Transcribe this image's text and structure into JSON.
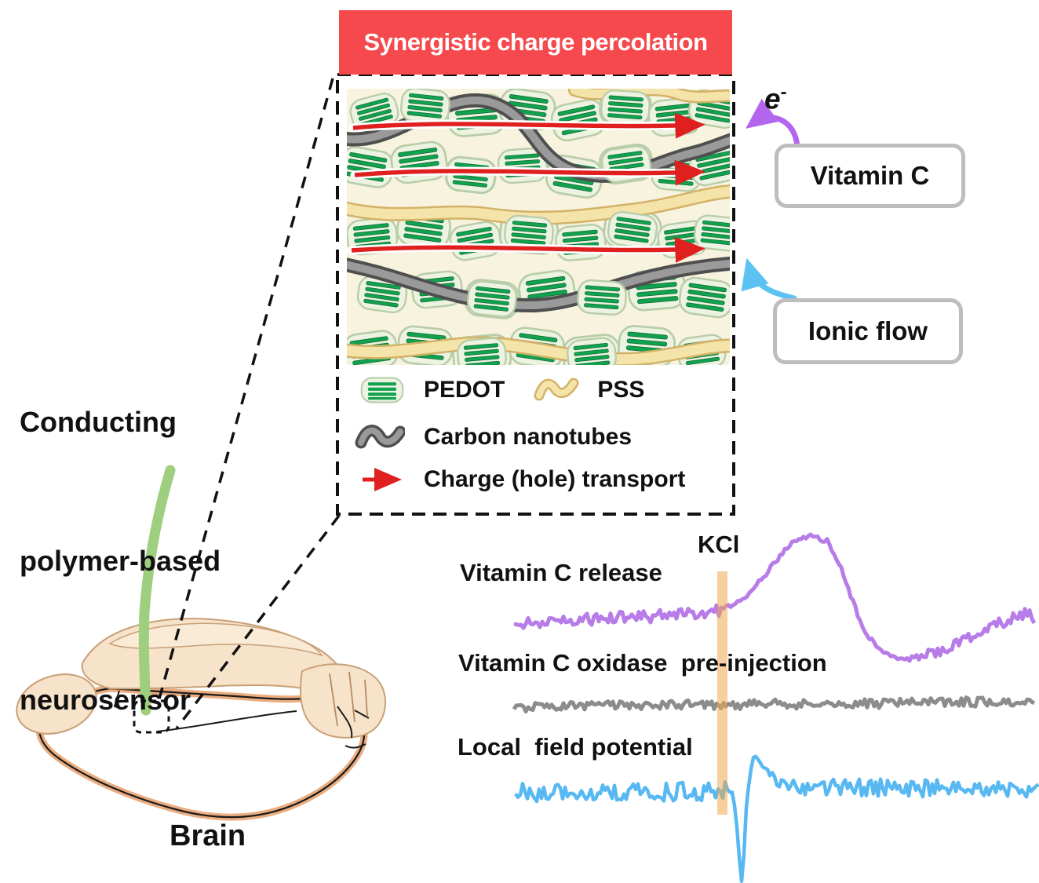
{
  "banner": {
    "label": "Synergistic charge percolation"
  },
  "inset": {
    "legend": [
      {
        "icon": "pedot-icon",
        "label": "PEDOT"
      },
      {
        "icon": "pss-icon",
        "label": "PSS"
      },
      {
        "icon": "carbon-nanotube-icon",
        "label": "Carbon nanotubes"
      },
      {
        "icon": "charge-arrow-icon",
        "label": "Charge (hole) transport"
      }
    ]
  },
  "callouts": {
    "electron": {
      "label": "e",
      "sup": "-"
    },
    "vitamin_c": {
      "label": "Vitamin C"
    },
    "ionic_flow": {
      "label": "Ionic flow"
    }
  },
  "left": {
    "title_line1": "Conducting",
    "title_line2": "polymer-based",
    "title_line3": "neurosensor",
    "brain_label": "Brain"
  },
  "traces": {
    "kcl_label": "KCl",
    "items": [
      {
        "label": "Vitamin C release",
        "color": "#B77CE8"
      },
      {
        "label": "Vitamin C oxidase  pre-injection",
        "color": "#8C8C8C"
      },
      {
        "label": "Local  field potential",
        "color": "#58B9F2"
      }
    ]
  },
  "colors": {
    "banner_bg": "#F5494D",
    "banner_text": "#FFFFFF",
    "box_border": "#BDBDBD",
    "dashed_line": "#111111",
    "electron_arrow": "#B465EE",
    "ionic_arrow": "#5BC2F2",
    "probe_green": "#9ECF7E",
    "kcl_band": "#F0A64E",
    "charge_red": "#E01F1F",
    "pedot_body": "#EDF3E1",
    "pedot_edge": "#B9CDA9",
    "pedot_stripe": "#12A14E",
    "pedot_stripe_dark": "#0A6A31",
    "pss_edge": "#D3B268",
    "pss_core": "#F5E4AA",
    "cnt_edge": "#4F4F4F",
    "cnt_core": "#9A9A9A",
    "weave_bg": "#F8F3DF",
    "cortex": "#F7E3C9",
    "cortex_edge": "#C8A078",
    "brain_rim": "#EBAD80"
  }
}
